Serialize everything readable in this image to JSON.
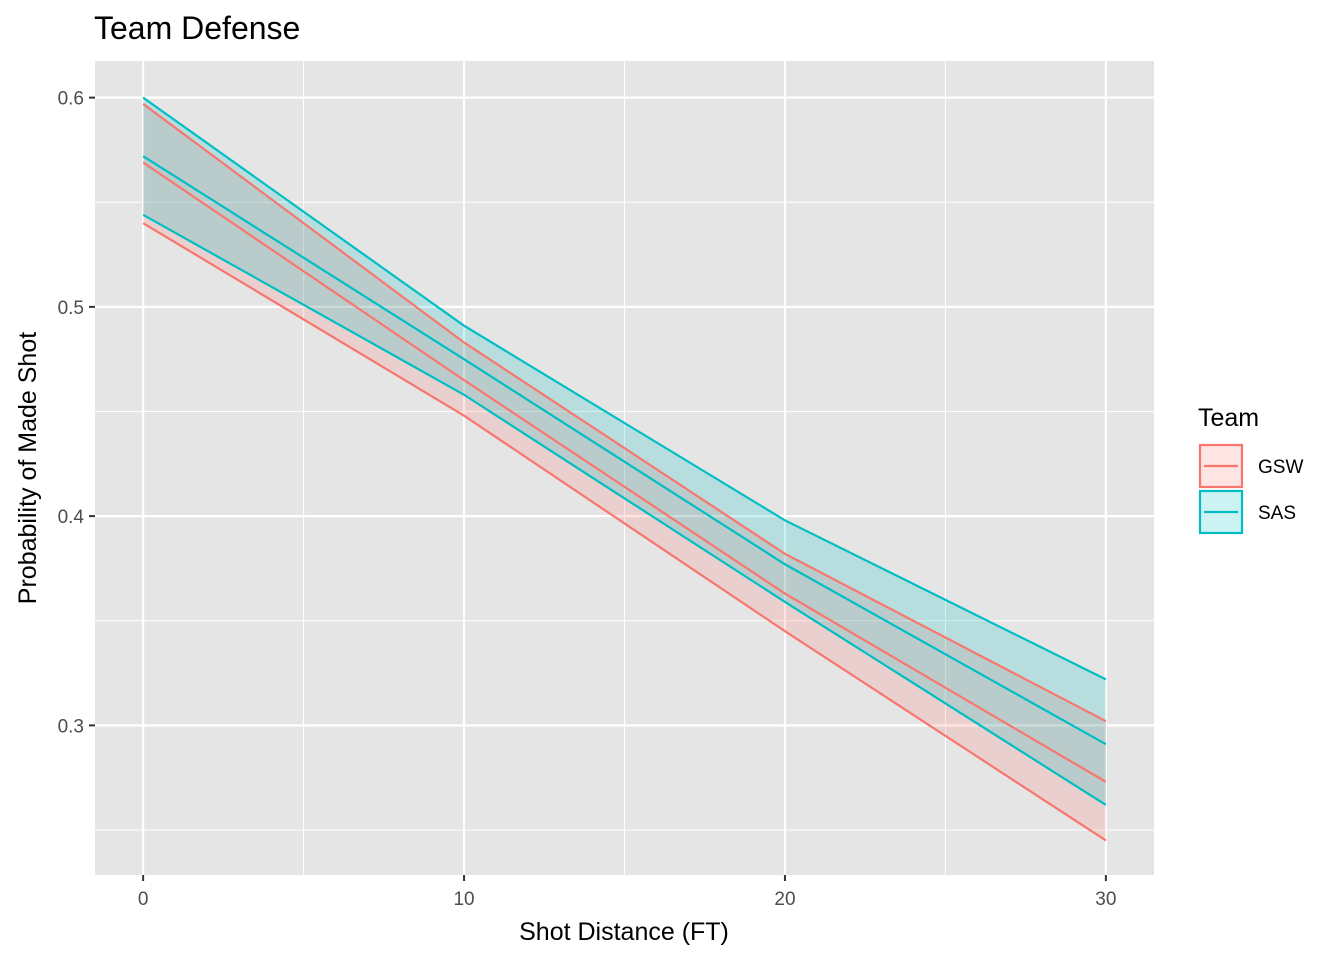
{
  "chart_data": {
    "type": "line",
    "title": "Team Defense",
    "xlabel": "Shot Distance (FT)",
    "ylabel": "Probability of Made Shot",
    "xlim": [
      -1.5,
      31.5
    ],
    "ylim": [
      0.2285,
      0.6175
    ],
    "x_ticks": [
      0,
      10,
      20,
      30
    ],
    "x_tick_labels": [
      "0",
      "10",
      "20",
      "30"
    ],
    "y_ticks": [
      0.3,
      0.4,
      0.5,
      0.6
    ],
    "y_tick_labels": [
      "0.3",
      "0.4",
      "0.5",
      "0.6"
    ],
    "x_minor": [
      5,
      15,
      25
    ],
    "y_minor": [
      0.25,
      0.35,
      0.45,
      0.55
    ],
    "grid": true,
    "legend_position": "right",
    "legend_title": "Team",
    "x": [
      0,
      10,
      20,
      30
    ],
    "series": [
      {
        "name": "GSW",
        "color": "#F8766D",
        "fit": [
          0.569,
          0.465,
          0.363,
          0.273
        ],
        "lower": [
          0.54,
          0.448,
          0.345,
          0.245
        ],
        "upper": [
          0.597,
          0.483,
          0.382,
          0.302
        ]
      },
      {
        "name": "SAS",
        "color": "#00BFC4",
        "fit": [
          0.572,
          0.475,
          0.377,
          0.291
        ],
        "lower": [
          0.544,
          0.458,
          0.359,
          0.262
        ],
        "upper": [
          0.6,
          0.491,
          0.398,
          0.322
        ]
      }
    ],
    "panel_background": "#E5E5E5",
    "grid_color": "#FFFFFF"
  }
}
